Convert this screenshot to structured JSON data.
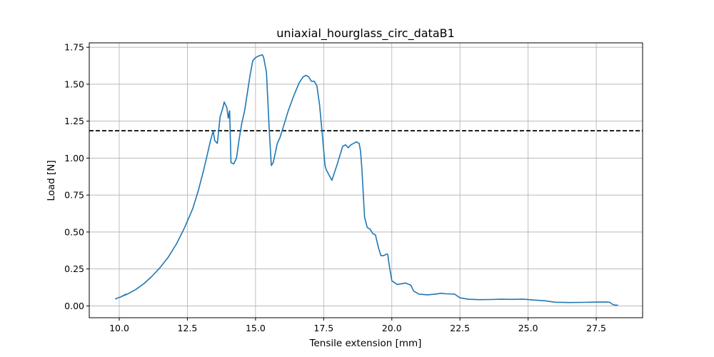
{
  "chart_data": {
    "type": "line",
    "title": "uniaxial_hourglass_circ_dataB1",
    "xlabel": "Tensile extension [mm]",
    "ylabel": "Load [N]",
    "xlim": [
      8.9,
      29.2
    ],
    "ylim": [
      -0.08,
      1.78
    ],
    "grid": true,
    "x_ticks": [
      10.0,
      12.5,
      15.0,
      17.5,
      20.0,
      22.5,
      25.0,
      27.5
    ],
    "x_tick_labels": [
      "10.0",
      "12.5",
      "15.0",
      "17.5",
      "20.0",
      "22.5",
      "25.0",
      "27.5"
    ],
    "y_ticks": [
      0.0,
      0.25,
      0.5,
      0.75,
      1.0,
      1.25,
      1.5,
      1.75
    ],
    "y_tick_labels": [
      "0.00",
      "0.25",
      "0.50",
      "0.75",
      "1.00",
      "1.25",
      "1.50",
      "1.75"
    ],
    "reference_line": {
      "y": 1.185,
      "style": "dashed",
      "color": "#000000"
    },
    "series": [
      {
        "name": "load",
        "color": "#1f77b4",
        "x": [
          9.85,
          9.95,
          10.05,
          10.15,
          10.25,
          10.1,
          10.3,
          10.6,
          10.9,
          11.2,
          11.5,
          11.8,
          12.1,
          12.4,
          12.7,
          12.9,
          13.1,
          13.25,
          13.35,
          13.45,
          13.5,
          13.6,
          13.7,
          13.8,
          13.85,
          13.95,
          14.0,
          14.05,
          14.1,
          14.2,
          14.3,
          14.4,
          14.5,
          14.6,
          14.7,
          14.8,
          14.9,
          15.0,
          15.1,
          15.25,
          15.3,
          15.4,
          15.5,
          15.58,
          15.65,
          15.8,
          15.9,
          16.0,
          16.2,
          16.4,
          16.6,
          16.75,
          16.85,
          16.95,
          17.05,
          17.15,
          17.25,
          17.35,
          17.45,
          17.55,
          17.6,
          17.8,
          18.0,
          18.2,
          18.3,
          18.4,
          18.5,
          18.6,
          18.7,
          18.8,
          18.85,
          18.9,
          19.0,
          19.1,
          19.2,
          19.3,
          19.4,
          19.5,
          19.6,
          19.7,
          19.8,
          19.85,
          19.9,
          20.0,
          20.2,
          20.5,
          20.7,
          20.8,
          21.0,
          21.3,
          21.6,
          21.8,
          22.0,
          22.3,
          22.5,
          22.8,
          23.2,
          23.6,
          24.0,
          24.4,
          24.8,
          25.2,
          25.6,
          26.0,
          26.5,
          27.0,
          27.5,
          27.9,
          28.0,
          28.1,
          28.2,
          28.3
        ],
        "y": [
          0.045,
          0.055,
          0.06,
          0.07,
          0.08,
          0.065,
          0.08,
          0.11,
          0.15,
          0.2,
          0.26,
          0.33,
          0.42,
          0.53,
          0.66,
          0.78,
          0.92,
          1.04,
          1.12,
          1.185,
          1.12,
          1.1,
          1.28,
          1.34,
          1.38,
          1.34,
          1.27,
          1.32,
          0.97,
          0.96,
          1.0,
          1.13,
          1.24,
          1.32,
          1.44,
          1.56,
          1.66,
          1.68,
          1.69,
          1.7,
          1.68,
          1.58,
          1.2,
          0.95,
          0.97,
          1.1,
          1.14,
          1.2,
          1.32,
          1.42,
          1.51,
          1.55,
          1.56,
          1.55,
          1.52,
          1.52,
          1.49,
          1.36,
          1.16,
          0.95,
          0.92,
          0.85,
          0.96,
          1.08,
          1.09,
          1.07,
          1.09,
          1.1,
          1.11,
          1.1,
          1.05,
          0.93,
          0.6,
          0.53,
          0.52,
          0.49,
          0.48,
          0.4,
          0.34,
          0.34,
          0.35,
          0.35,
          0.28,
          0.17,
          0.145,
          0.155,
          0.14,
          0.1,
          0.08,
          0.075,
          0.08,
          0.085,
          0.082,
          0.08,
          0.055,
          0.045,
          0.042,
          0.043,
          0.045,
          0.044,
          0.046,
          0.04,
          0.035,
          0.025,
          0.023,
          0.024,
          0.026,
          0.027,
          0.024,
          0.01,
          0.005,
          0.005
        ]
      }
    ]
  }
}
